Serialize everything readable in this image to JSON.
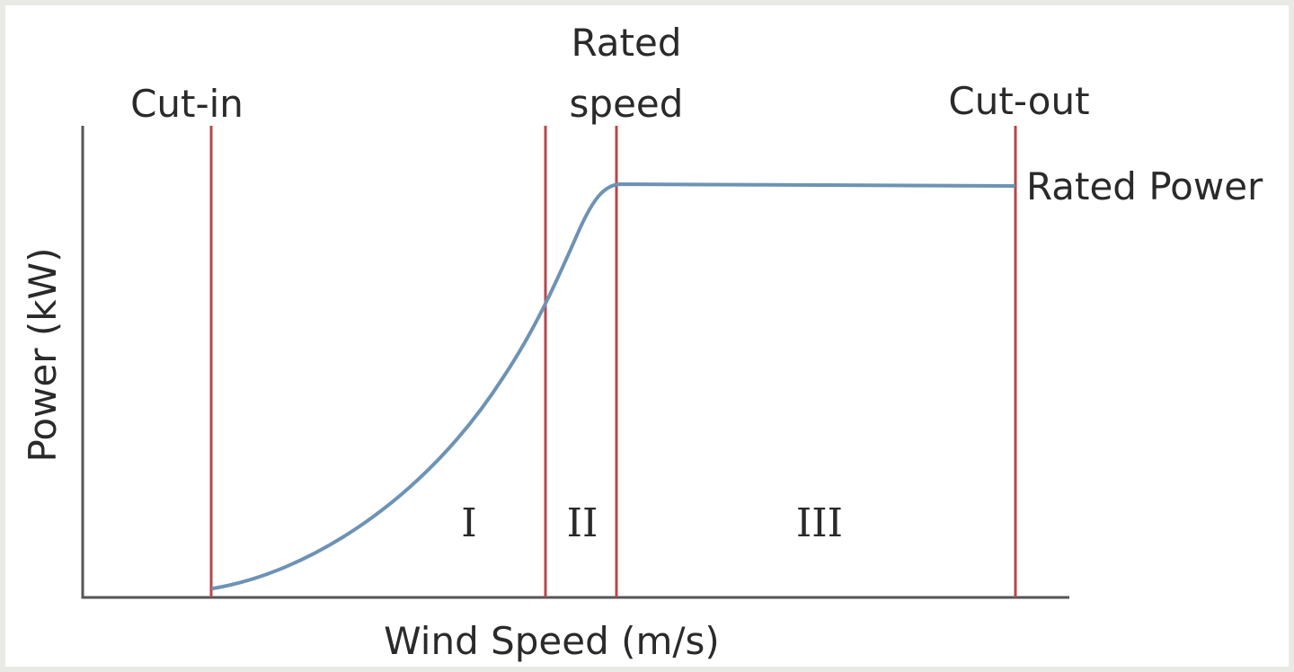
{
  "chart_data": {
    "type": "line",
    "title": "",
    "xlabel": "Wind Speed (m/s)",
    "ylabel": "Power (kW)",
    "markers": [
      {
        "name": "cut-in",
        "label_lines": [
          "Cut-in"
        ]
      },
      {
        "name": "region-boundary",
        "label_lines": []
      },
      {
        "name": "rated-speed",
        "label_lines": [
          "Rated",
          "speed"
        ]
      },
      {
        "name": "cut-out",
        "label_lines": [
          "Cut-out"
        ]
      }
    ],
    "regions": [
      "I",
      "II",
      "III"
    ],
    "rated_power_label": "Rated Power",
    "grid": false,
    "legend": "none"
  }
}
